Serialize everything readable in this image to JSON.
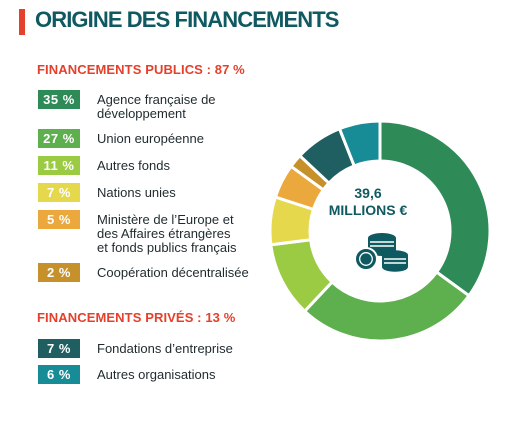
{
  "title": "ORIGINE DES FINANCEMENTS",
  "sections": {
    "public": {
      "title": "FINANCEMENTS PUBLICS : 87 %",
      "items": [
        {
          "badge": "35 %",
          "label": "Agence française de développement",
          "color": "#2e8b57"
        },
        {
          "badge": "27 %",
          "label": "Union européenne",
          "color": "#5eaf4e"
        },
        {
          "badge": "11 %",
          "label": "Autres fonds",
          "color": "#9bca43"
        },
        {
          "badge": "7 %",
          "label": "Nations unies",
          "color": "#e6d84d"
        },
        {
          "badge": "5 %",
          "label": "Ministère de l’Europe et\ndes Affaires étrangères\net fonds publics français",
          "color": "#eba83c"
        },
        {
          "badge": "2 %",
          "label": "Coopération décentralisée",
          "color": "#c6902a"
        }
      ]
    },
    "private": {
      "title": "FINANCEMENTS PRIVÉS : 13 %",
      "items": [
        {
          "badge": "7 %",
          "label": "Fondations d’entreprise",
          "color": "#1f5f61"
        },
        {
          "badge": "6 %",
          "label": "Autres organisations",
          "color": "#188c96"
        }
      ]
    }
  },
  "center": {
    "amount": "39,6",
    "unit": "MILLIONS €"
  },
  "colors": {
    "accent": "#e5402b",
    "title": "#0f5a61"
  },
  "chart_data": {
    "type": "pie",
    "donut": true,
    "total_label": "39,6 MILLIONS €",
    "categories": [
      "Agence française de développement",
      "Union européenne",
      "Autres fonds",
      "Nations unies",
      "Ministère de l’Europe et des Affaires étrangères et fonds publics français",
      "Coopération décentralisée",
      "Fondations d’entreprise",
      "Autres organisations"
    ],
    "values": [
      35,
      27,
      11,
      7,
      5,
      2,
      7,
      6
    ],
    "colors": [
      "#2e8b57",
      "#5eaf4e",
      "#9bca43",
      "#e6d84d",
      "#eba83c",
      "#c6902a",
      "#1f5f61",
      "#188c96"
    ],
    "groups": [
      {
        "name": "FINANCEMENTS PUBLICS : 87 %",
        "value": 87
      },
      {
        "name": "FINANCEMENTS PRIVÉS : 13 %",
        "value": 13
      }
    ]
  }
}
